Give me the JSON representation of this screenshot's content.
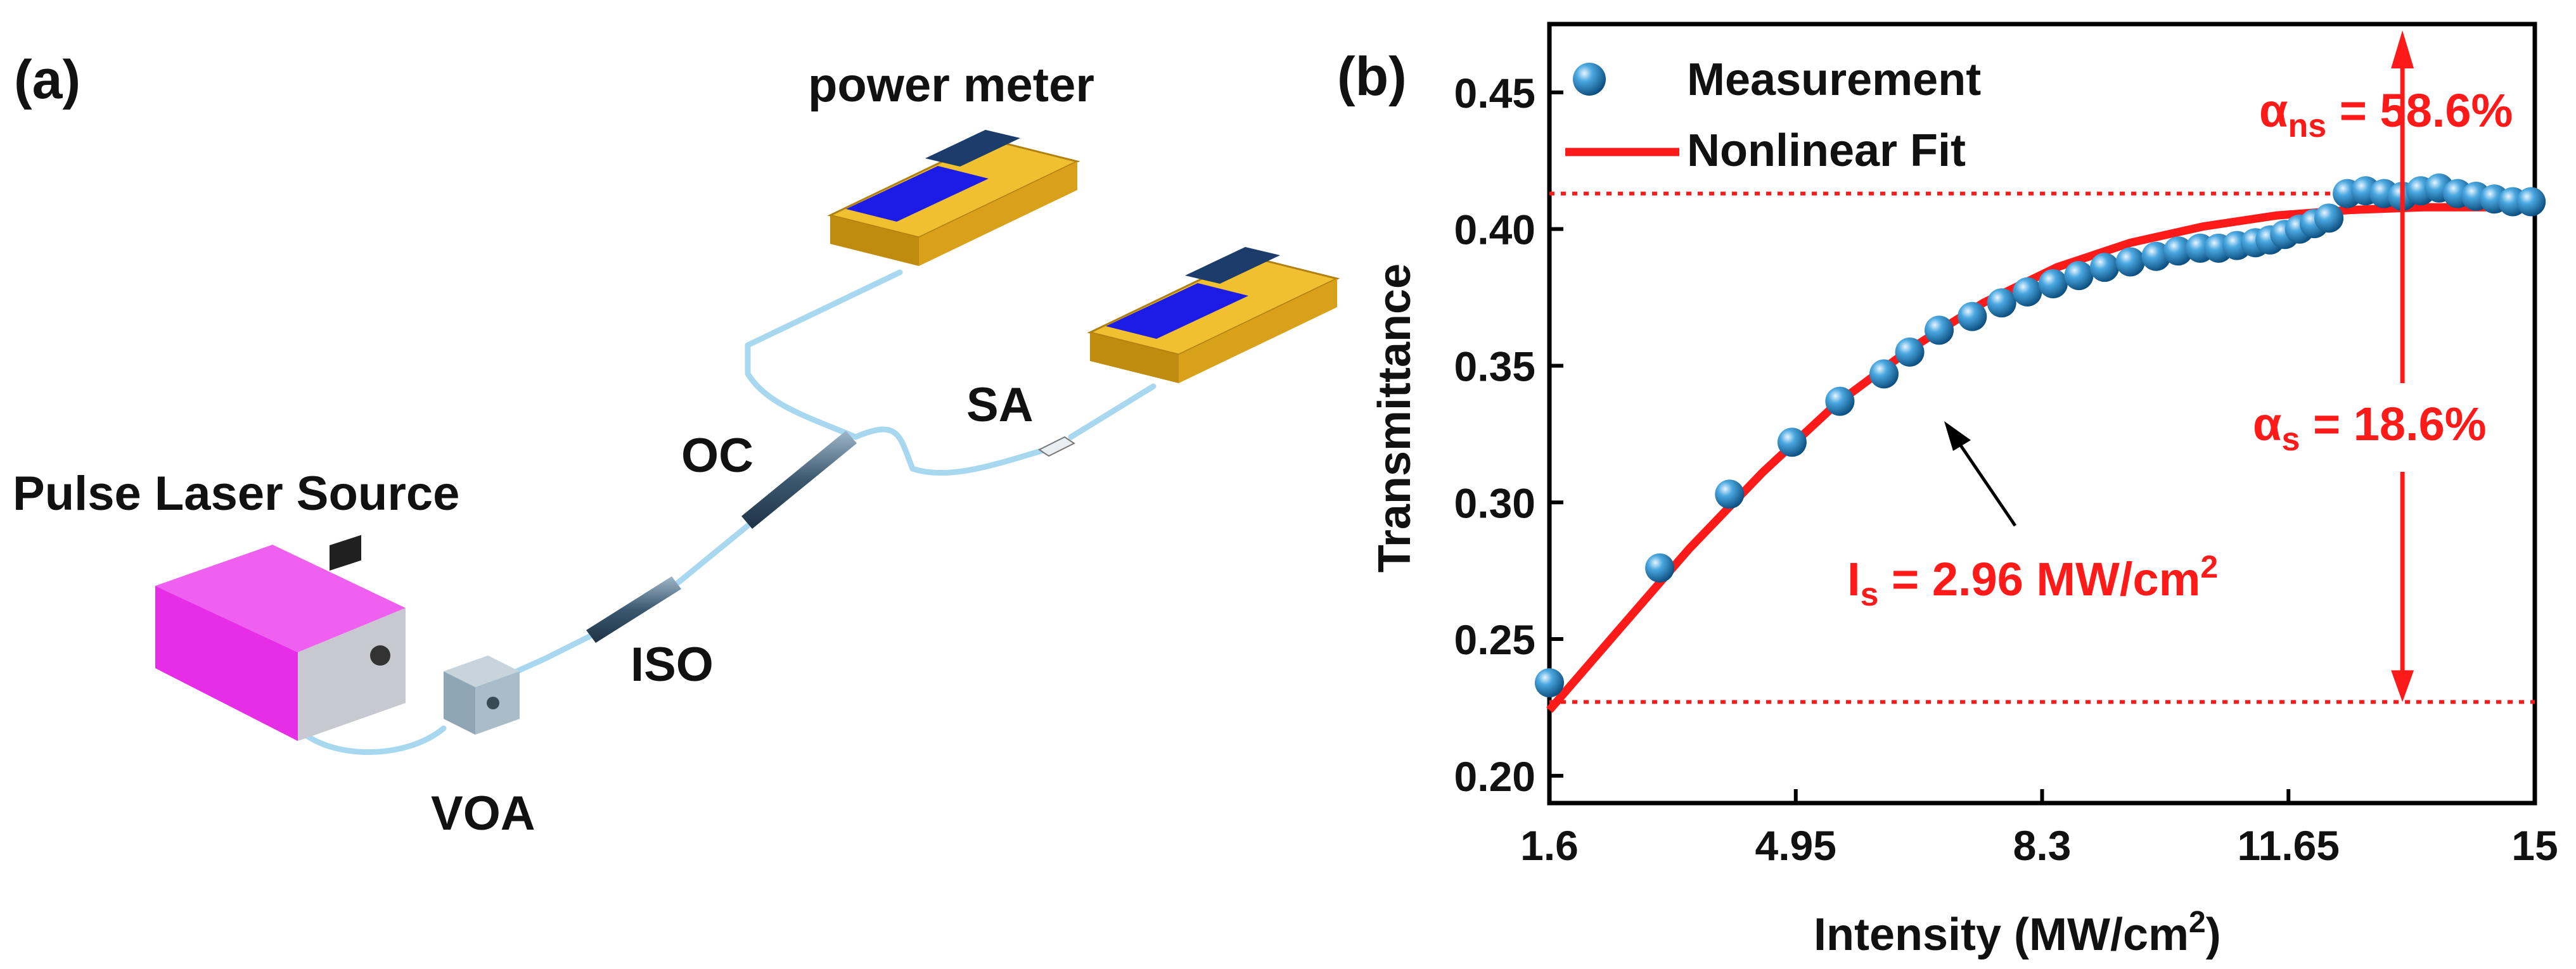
{
  "panel_a": {
    "label": "(a)",
    "components": {
      "power_meter": "power meter",
      "laser": "Pulse Laser Source",
      "oc": "OC",
      "sa": "SA",
      "iso": "ISO",
      "voa": "VOA"
    },
    "colors": {
      "laser_body": "#e62ee6",
      "meter_body": "#e8b21a",
      "meter_screen": "#1414e6",
      "fiber": "#9fd0ea",
      "component": "#5b7a90"
    }
  },
  "panel_b": {
    "label": "(b)",
    "legend": {
      "measurement": "Measurement",
      "fit": "Nonlinear Fit"
    },
    "annotations": {
      "alpha_ns": {
        "symbol": "α",
        "sub": "ns",
        "value": " = 58.6%"
      },
      "alpha_s": {
        "symbol": "α",
        "sub": "s",
        "value": " = 18.6%"
      },
      "is": {
        "symbol": "I",
        "sub": "s",
        "value": " = 2.96 MW/cm",
        "sup": "2"
      }
    },
    "colors": {
      "fit": "#ff1a1a",
      "point": "#2a86c2",
      "axis": "#000000",
      "annotation": "#ff1a1a"
    }
  },
  "chart_data": {
    "type": "scatter",
    "title": "",
    "xlabel": "Intensity (MW/cm²)",
    "xlabel_parts": {
      "main": "Intensity (MW/cm",
      "sup": "2",
      "end": ")"
    },
    "ylabel": "Transmittance",
    "xlim": [
      1.6,
      15
    ],
    "ylim": [
      0.19,
      0.475
    ],
    "x_ticks": [
      1.6,
      4.95,
      8.3,
      11.65,
      15
    ],
    "x_tick_labels": [
      "1.6",
      "4.95",
      "8.3",
      "11.65",
      "15"
    ],
    "y_ticks": [
      0.2,
      0.25,
      0.3,
      0.35,
      0.4,
      0.45
    ],
    "y_tick_labels": [
      "0.20",
      "0.25",
      "0.30",
      "0.35",
      "0.40",
      "0.45"
    ],
    "reference_lines": [
      0.413,
      0.227
    ],
    "arrow_x": 13.2,
    "series": [
      {
        "name": "Measurement",
        "kind": "scatter",
        "x": [
          1.6,
          3.1,
          4.05,
          4.9,
          5.55,
          6.15,
          6.5,
          6.9,
          7.35,
          7.75,
          8.1,
          8.45,
          8.8,
          9.15,
          9.5,
          9.85,
          10.15,
          10.45,
          10.7,
          10.95,
          11.2,
          11.4,
          11.6,
          11.8,
          12.0,
          12.2,
          12.45,
          12.7,
          12.95,
          13.2,
          13.45,
          13.7,
          13.95,
          14.2,
          14.45,
          14.7,
          14.95
        ],
        "y": [
          0.234,
          0.276,
          0.303,
          0.322,
          0.337,
          0.347,
          0.355,
          0.363,
          0.368,
          0.373,
          0.377,
          0.38,
          0.383,
          0.386,
          0.388,
          0.39,
          0.392,
          0.393,
          0.393,
          0.394,
          0.395,
          0.396,
          0.398,
          0.4,
          0.402,
          0.404,
          0.413,
          0.414,
          0.413,
          0.412,
          0.414,
          0.415,
          0.413,
          0.412,
          0.411,
          0.41,
          0.41
        ]
      },
      {
        "name": "Nonlinear Fit",
        "kind": "line",
        "x": [
          1.6,
          2.5,
          3.5,
          4.5,
          5.5,
          6.5,
          7.5,
          8.5,
          9.5,
          10.5,
          11.5,
          12.5,
          13.5,
          14.5,
          15.0
        ],
        "y": [
          0.224,
          0.252,
          0.283,
          0.311,
          0.336,
          0.356,
          0.373,
          0.386,
          0.395,
          0.401,
          0.405,
          0.407,
          0.408,
          0.408,
          0.408
        ]
      }
    ]
  }
}
